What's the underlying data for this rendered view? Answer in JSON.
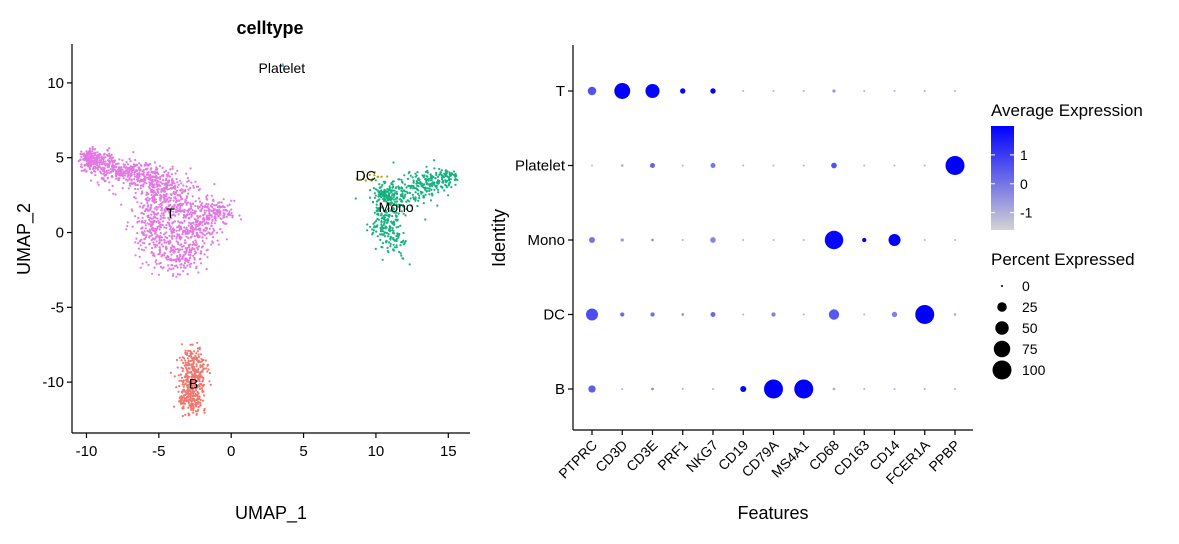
{
  "chart_data": [
    {
      "type": "scatter",
      "title": "celltype",
      "xlabel": "UMAP_1",
      "ylabel": "UMAP_2",
      "xlim": [
        -11,
        16.5
      ],
      "ylim": [
        -13.4,
        12.6
      ],
      "xticks": [
        -10,
        -5,
        0,
        5,
        10,
        15
      ],
      "yticks": [
        -10,
        -5,
        0,
        5,
        10
      ],
      "grid": false,
      "legend": "none",
      "clusters": [
        {
          "name": "T",
          "color": "#E378E3",
          "count": 1700,
          "label_pos": [
            -4.2,
            1.3
          ],
          "shape": [
            [
              -9.8,
              4.9,
              0.35,
              0.35
            ],
            [
              -9.0,
              4.6,
              0.5,
              0.4
            ],
            [
              -7.8,
              4.2,
              0.6,
              0.4
            ],
            [
              -6.5,
              3.9,
              0.6,
              0.45
            ],
            [
              -5.2,
              3.4,
              0.7,
              0.6
            ],
            [
              -4.0,
              2.6,
              0.9,
              0.8
            ],
            [
              -5.2,
              1.5,
              0.8,
              0.9
            ],
            [
              -5.5,
              0.0,
              0.6,
              0.9
            ],
            [
              -4.0,
              -0.5,
              1.1,
              1.1
            ],
            [
              -3.0,
              1.0,
              0.9,
              1.0
            ],
            [
              -2.2,
              0.2,
              0.7,
              0.9
            ],
            [
              -3.6,
              -1.6,
              0.8,
              0.5
            ],
            [
              -1.0,
              1.3,
              0.6,
              0.4
            ]
          ]
        },
        {
          "name": "Mono",
          "color": "#16B17E",
          "count": 620,
          "label_pos": [
            11.4,
            1.7
          ],
          "shape": [
            [
              10.3,
              0.8,
              0.5,
              0.7
            ],
            [
              10.8,
              1.6,
              0.5,
              0.8
            ],
            [
              11.6,
              2.4,
              0.8,
              0.6
            ],
            [
              12.8,
              2.9,
              0.8,
              0.5
            ],
            [
              13.8,
              3.4,
              0.6,
              0.4
            ],
            [
              14.8,
              3.7,
              0.4,
              0.3
            ],
            [
              11.2,
              -0.4,
              0.4,
              0.8
            ],
            [
              10.6,
              2.7,
              0.4,
              0.4
            ]
          ]
        },
        {
          "name": "B",
          "color": "#F0776E",
          "count": 420,
          "label_pos": [
            -2.6,
            -10.1
          ],
          "shape": [
            [
              -2.6,
              -8.8,
              0.4,
              0.6
            ],
            [
              -2.7,
              -10.0,
              0.5,
              0.7
            ],
            [
              -2.8,
              -11.2,
              0.4,
              0.5
            ]
          ]
        },
        {
          "name": "DC",
          "color": "#A3A400",
          "count": 14,
          "label_pos": [
            9.3,
            3.8
          ],
          "shape": [
            [
              9.6,
              3.7,
              0.5,
              0.2
            ]
          ]
        },
        {
          "name": "Platelet",
          "color": "#6C9EFF",
          "count": 3,
          "label_pos": [
            3.5,
            11.0
          ],
          "shape": [
            [
              3.5,
              11.2,
              0.2,
              0.1
            ]
          ]
        }
      ]
    },
    {
      "type": "dotplot",
      "xlabel": "Features",
      "ylabel": "Identity",
      "features": [
        "PTPRC",
        "CD3D",
        "CD3E",
        "PRF1",
        "NKG7",
        "CD19",
        "CD79A",
        "MS4A1",
        "CD68",
        "CD163",
        "CD14",
        "FCER1A",
        "PPBP"
      ],
      "identities": [
        "T",
        "Platelet",
        "Mono",
        "DC",
        "B"
      ],
      "grid": false,
      "legend": "right",
      "series": [
        {
          "name": "T",
          "avg_exp": [
            0.6,
            2.0,
            1.9,
            2.0,
            2.0,
            -1.0,
            -1.0,
            -1.0,
            -0.6,
            -1.0,
            -1.0,
            -1.0,
            -1.0
          ],
          "pct_exp": [
            20,
            70,
            55,
            8,
            8,
            1,
            1,
            1,
            3,
            1,
            1,
            1,
            1
          ]
        },
        {
          "name": "Platelet",
          "avg_exp": [
            -1.2,
            -1.0,
            0.3,
            -1.0,
            0.0,
            -1.0,
            -1.0,
            -1.0,
            0.6,
            -1.0,
            -1.0,
            -1.0,
            2.0
          ],
          "pct_exp": [
            1,
            2,
            7,
            1,
            7,
            1,
            1,
            1,
            9,
            1,
            1,
            1,
            100
          ]
        },
        {
          "name": "Mono",
          "avg_exp": [
            0.0,
            -0.6,
            -0.4,
            -1.0,
            -0.3,
            -1.0,
            -1.0,
            -1.0,
            1.9,
            2.0,
            2.0,
            -1.0,
            -1.0
          ],
          "pct_exp": [
            10,
            3,
            2,
            1,
            9,
            1,
            1,
            1,
            95,
            5,
            40,
            1,
            1
          ]
        },
        {
          "name": "DC",
          "avg_exp": [
            0.7,
            0.2,
            0.1,
            -0.5,
            0.2,
            -1.0,
            -0.2,
            -1.0,
            0.5,
            -1.0,
            -0.2,
            2.0,
            -1.0
          ],
          "pct_exp": [
            40,
            5,
            5,
            2,
            7,
            1,
            5,
            1,
            30,
            1,
            8,
            100,
            2
          ]
        },
        {
          "name": "B",
          "avg_exp": [
            0.4,
            -1.0,
            -0.4,
            -1.0,
            -1.0,
            2.0,
            2.0,
            2.0,
            -0.9,
            -1.0,
            -1.0,
            -1.0,
            -1.0
          ],
          "pct_exp": [
            15,
            1,
            2,
            1,
            1,
            10,
            100,
            100,
            2,
            1,
            1,
            1,
            1
          ]
        }
      ],
      "color_scale": {
        "low": "#D3D3D3",
        "high": "#0000FF",
        "range": [
          -1.6,
          2.0
        ],
        "ticks": [
          1,
          0,
          -1
        ]
      },
      "size_scale": {
        "max_radius_pct": 100,
        "ticks": [
          0,
          25,
          50,
          75,
          100
        ]
      }
    }
  ],
  "legend": {
    "color_title": "Average Expression",
    "color_ticks": [
      "1",
      "0",
      "-1"
    ],
    "size_title": "Percent Expressed",
    "size_ticks": [
      "0",
      "25",
      "50",
      "75",
      "100"
    ]
  }
}
